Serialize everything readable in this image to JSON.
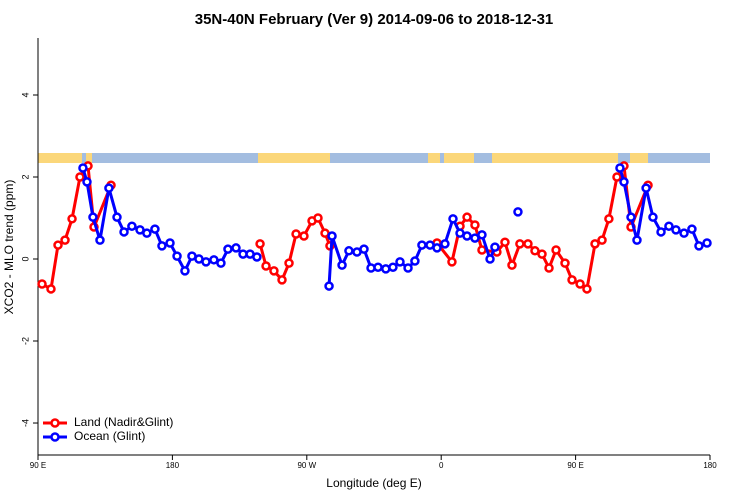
{
  "chart_data": {
    "type": "line",
    "title": "35N-40N February (Ver 9)   2014-09-06 to 2018-12-31",
    "x_label": "Longitude (deg E)",
    "y_label": "XCO2 - MLO trend (ppm)",
    "xlim": [
      90,
      540
    ],
    "xticks": [
      {
        "value": 90,
        "label": "90 E"
      },
      180,
      {
        "value": 270,
        "label": "90 W"
      },
      {
        "value": 360,
        "label": "0"
      },
      {
        "value": 450,
        "label": "90 E"
      },
      {
        "value": 540,
        "label": "180"
      }
    ],
    "ylim": [
      -4.78,
      5.39
    ],
    "yticks": [
      -4,
      -2,
      0,
      2,
      4
    ],
    "legend": "bottom-left",
    "series": [
      {
        "name": "Land (Nadir&Glint)",
        "color": "#ff0000",
        "x": [
          92.7,
          98.7,
          103.4,
          108.1,
          112.8,
          118.1,
          123.5,
          127.5,
          138.9,
          188.0,
          238.7,
          242.7,
          248.0,
          253.4,
          258.1,
          262.8,
          268.1,
          273.5,
          277.5,
          282.2,
          285.5,
          320.0,
          357.2,
          367.2,
          372.6,
          377.3,
          382.6,
          387.3,
          397.3,
          402.7,
          407.4,
          412.7,
          418.1,
          422.8,
          427.5,
          432.2,
          436.9,
          442.9,
          447.6,
          453.0,
          457.6,
          463.0,
          467.7,
          472.3,
          477.7,
          482.4,
          487.1,
          498.5
        ],
        "values": [
          -0.61,
          -0.73,
          0.34,
          0.46,
          0.98,
          2.0,
          2.27,
          0.78,
          1.8,
          null,
          0.37,
          -0.17,
          -0.29,
          -0.51,
          -0.1,
          0.61,
          0.56,
          0.93,
          1.0,
          0.63,
          0.32,
          null,
          0.39,
          -0.07,
          0.8,
          1.02,
          0.83,
          0.22,
          0.17,
          0.41,
          -0.15,
          0.37,
          0.37,
          0.2,
          0.12,
          -0.22,
          0.22,
          -0.1,
          -0.51,
          -0.61,
          -0.73,
          0.37,
          0.46,
          0.98,
          2.0,
          2.27,
          0.78,
          1.8
        ]
      },
      {
        "name": "Ocean (Glint)",
        "color": "#0000ff",
        "x": [
          120.1,
          122.8,
          126.8,
          131.5,
          137.5,
          142.9,
          147.6,
          152.9,
          158.3,
          162.9,
          168.3,
          173.0,
          178.4,
          183.1,
          188.4,
          193.1,
          197.8,
          202.5,
          207.8,
          212.5,
          217.2,
          222.6,
          227.3,
          232.0,
          236.6,
          260.0,
          284.9,
          286.9,
          293.6,
          298.2,
          303.6,
          308.3,
          313.0,
          317.7,
          322.9,
          327.7,
          332.4,
          337.8,
          342.4,
          347.1,
          352.5,
          357.2,
          362.5,
          367.9,
          372.6,
          377.3,
          382.6,
          387.3,
          392.7,
          396.0,
          404.0,
          411.4,
          450.0,
          479.7,
          482.4,
          487.1,
          491.1,
          497.2,
          501.8,
          507.2,
          512.5,
          517.2,
          522.6,
          527.9,
          532.6,
          538.0
        ],
        "values": [
          2.22,
          1.88,
          1.02,
          0.46,
          1.73,
          1.02,
          0.66,
          0.8,
          0.71,
          0.63,
          0.73,
          0.32,
          0.39,
          0.07,
          -0.29,
          0.07,
          0,
          -0.07,
          -0.02,
          -0.1,
          0.24,
          0.27,
          0.12,
          0.12,
          0.05,
          null,
          -0.66,
          0.56,
          -0.15,
          0.2,
          0.17,
          0.24,
          -0.22,
          -0.2,
          -0.24,
          -0.2,
          -0.07,
          -0.22,
          -0.05,
          0.34,
          0.34,
          0.27,
          0.37,
          0.98,
          0.63,
          0.56,
          0.51,
          0.59,
          0,
          0.29,
          null,
          1.15,
          null,
          2.22,
          1.88,
          1.02,
          0.46,
          1.73,
          1.02,
          0.66,
          0.8,
          0.71,
          0.63,
          0.73,
          0.32,
          0.39
        ]
      }
    ]
  }
}
